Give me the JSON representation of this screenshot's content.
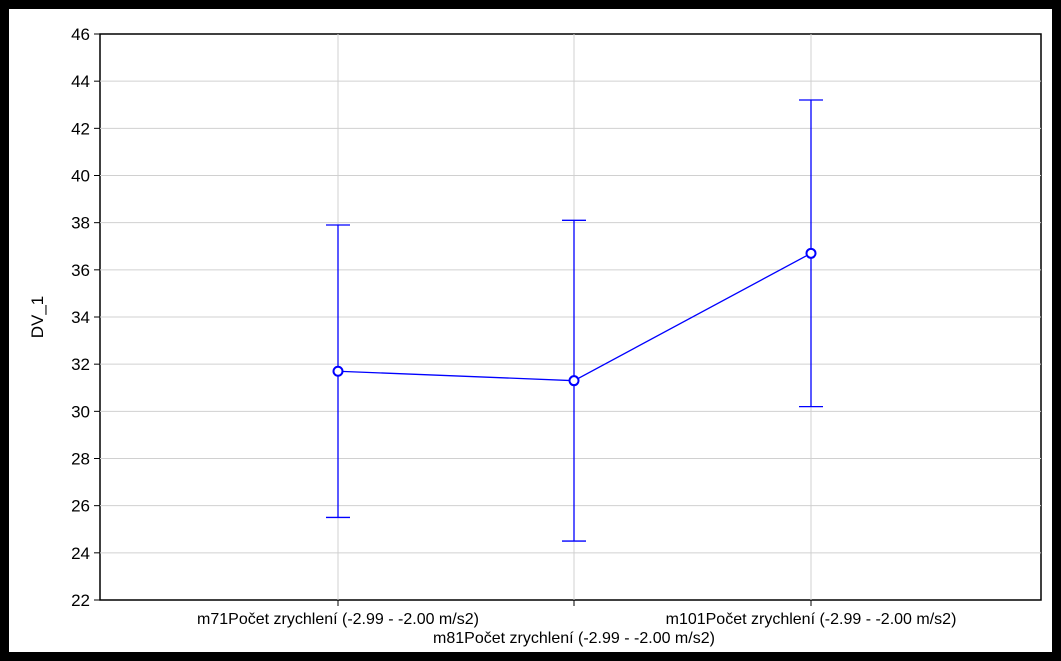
{
  "chart_data": {
    "type": "line",
    "title": "",
    "xlabel": "",
    "ylabel": "DV_1",
    "ylim": [
      22,
      46
    ],
    "y_ticks": [
      22,
      24,
      26,
      28,
      30,
      32,
      34,
      36,
      38,
      40,
      42,
      44,
      46
    ],
    "grid": true,
    "legend": "none",
    "categories": [
      "m71Počet zrychlení (-2.99 - -2.00 m/s2)",
      "m81Počet zrychlení (-2.99 - -2.00 m/s2)",
      "m101Počet zrychlení (-2.99 - -2.00 m/s2)"
    ],
    "series": [
      {
        "values": [
          31.7,
          31.3,
          36.7
        ],
        "error_low": [
          25.5,
          24.5,
          30.2
        ],
        "error_high": [
          37.9,
          38.1,
          43.2
        ],
        "color": "#0000ff"
      }
    ],
    "colors": {
      "frame": "#000000",
      "background": "#ffffff",
      "grid": "#d0d0d0",
      "series": "#0000ff"
    }
  }
}
